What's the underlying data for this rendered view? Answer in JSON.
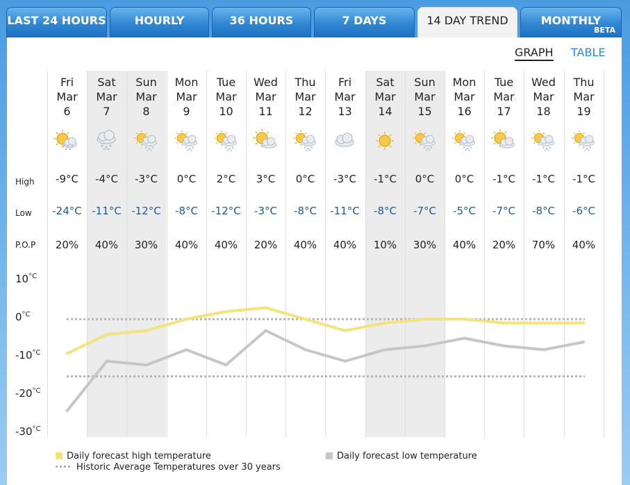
{
  "tabs": [
    {
      "label": "LAST 24 HOURS",
      "active": false
    },
    {
      "label": "HOURLY",
      "active": false
    },
    {
      "label": "36 HOURS",
      "active": false
    },
    {
      "label": "7 DAYS",
      "active": false
    },
    {
      "label": "14 DAY TREND",
      "active": true
    },
    {
      "label": "MONTHLY",
      "active": false,
      "badge": "BETA"
    }
  ],
  "view_toggle": {
    "graph": "GRAPH",
    "table": "TABLE"
  },
  "row_labels": {
    "high": "High",
    "low": "Low",
    "pop": "P.O.P"
  },
  "days": [
    {
      "dow": "Fri",
      "month": "Mar",
      "date": "6",
      "icon": "sun-snow-icon",
      "high": "-9°C",
      "low": "-24°C",
      "pop": "20%",
      "weekend": false
    },
    {
      "dow": "Sat",
      "month": "Mar",
      "date": "7",
      "icon": "cloud-snow-icon",
      "high": "-4°C",
      "low": "-11°C",
      "pop": "40%",
      "weekend": true
    },
    {
      "dow": "Sun",
      "month": "Mar",
      "date": "8",
      "icon": "sun-cloud-snow-icon",
      "high": "-3°C",
      "low": "-12°C",
      "pop": "30%",
      "weekend": true
    },
    {
      "dow": "Mon",
      "month": "Mar",
      "date": "9",
      "icon": "sun-cloud-snow-icon",
      "high": "0°C",
      "low": "-8°C",
      "pop": "40%",
      "weekend": false
    },
    {
      "dow": "Tue",
      "month": "Mar",
      "date": "10",
      "icon": "sun-cloud-snow-icon",
      "high": "2°C",
      "low": "-12°C",
      "pop": "40%",
      "weekend": false
    },
    {
      "dow": "Wed",
      "month": "Mar",
      "date": "11",
      "icon": "sun-cloud-icon",
      "high": "3°C",
      "low": "-3°C",
      "pop": "20%",
      "weekend": false
    },
    {
      "dow": "Thu",
      "month": "Mar",
      "date": "12",
      "icon": "sun-cloud-snow-icon",
      "high": "0°C",
      "low": "-8°C",
      "pop": "40%",
      "weekend": false
    },
    {
      "dow": "Fri",
      "month": "Mar",
      "date": "13",
      "icon": "cloudy-icon",
      "high": "-3°C",
      "low": "-11°C",
      "pop": "40%",
      "weekend": false
    },
    {
      "dow": "Sat",
      "month": "Mar",
      "date": "14",
      "icon": "sunny-icon",
      "high": "-1°C",
      "low": "-8°C",
      "pop": "10%",
      "weekend": true
    },
    {
      "dow": "Sun",
      "month": "Mar",
      "date": "15",
      "icon": "sun-cloud-snow-icon",
      "high": "0°C",
      "low": "-7°C",
      "pop": "30%",
      "weekend": true
    },
    {
      "dow": "Mon",
      "month": "Mar",
      "date": "16",
      "icon": "sun-cloud-snow-icon",
      "high": "0°C",
      "low": "-5°C",
      "pop": "40%",
      "weekend": false
    },
    {
      "dow": "Tue",
      "month": "Mar",
      "date": "17",
      "icon": "sun-cloud-icon",
      "high": "-1°C",
      "low": "-7°C",
      "pop": "20%",
      "weekend": false
    },
    {
      "dow": "Wed",
      "month": "Mar",
      "date": "18",
      "icon": "sun-cloud-snow-icon",
      "high": "-1°C",
      "low": "-8°C",
      "pop": "70%",
      "weekend": false
    },
    {
      "dow": "Thu",
      "month": "Mar",
      "date": "19",
      "icon": "sun-cloud-snow-icon",
      "high": "-1°C",
      "low": "-6°C",
      "pop": "40%",
      "weekend": false
    }
  ],
  "chart_data": {
    "type": "line",
    "categories": [
      "Fri Mar 6",
      "Sat Mar 7",
      "Sun Mar 8",
      "Mon Mar 9",
      "Tue Mar 10",
      "Wed Mar 11",
      "Thu Mar 12",
      "Fri Mar 13",
      "Sat Mar 14",
      "Sun Mar 15",
      "Mon Mar 16",
      "Tue Mar 17",
      "Wed Mar 18",
      "Thu Mar 19"
    ],
    "series": [
      {
        "name": "Daily forecast high temperature",
        "values": [
          -9,
          -4,
          -3,
          0,
          2,
          3,
          0,
          -3,
          -1,
          0,
          0,
          -1,
          -1,
          -1
        ],
        "color": "#f5e27a"
      },
      {
        "name": "Daily forecast low temperature",
        "values": [
          -24,
          -11,
          -12,
          -8,
          -12,
          -3,
          -8,
          -11,
          -8,
          -7,
          -5,
          -7,
          -8,
          -6
        ],
        "color": "#c6c6c6"
      }
    ],
    "reference_lines": [
      {
        "name": "Historic Average Temperatures over 30 years",
        "values": [
          0,
          -15
        ],
        "color": "#b5b5b5",
        "style": "dotted"
      }
    ],
    "yticks": [
      10,
      0,
      -10,
      -20,
      -30
    ],
    "ytick_unit": "°C",
    "ylim": [
      -30,
      10
    ]
  },
  "legend": {
    "high": "Daily forecast high temperature",
    "low": "Daily forecast low temperature",
    "historic": "Historic Average Temperatures over 30 years"
  }
}
